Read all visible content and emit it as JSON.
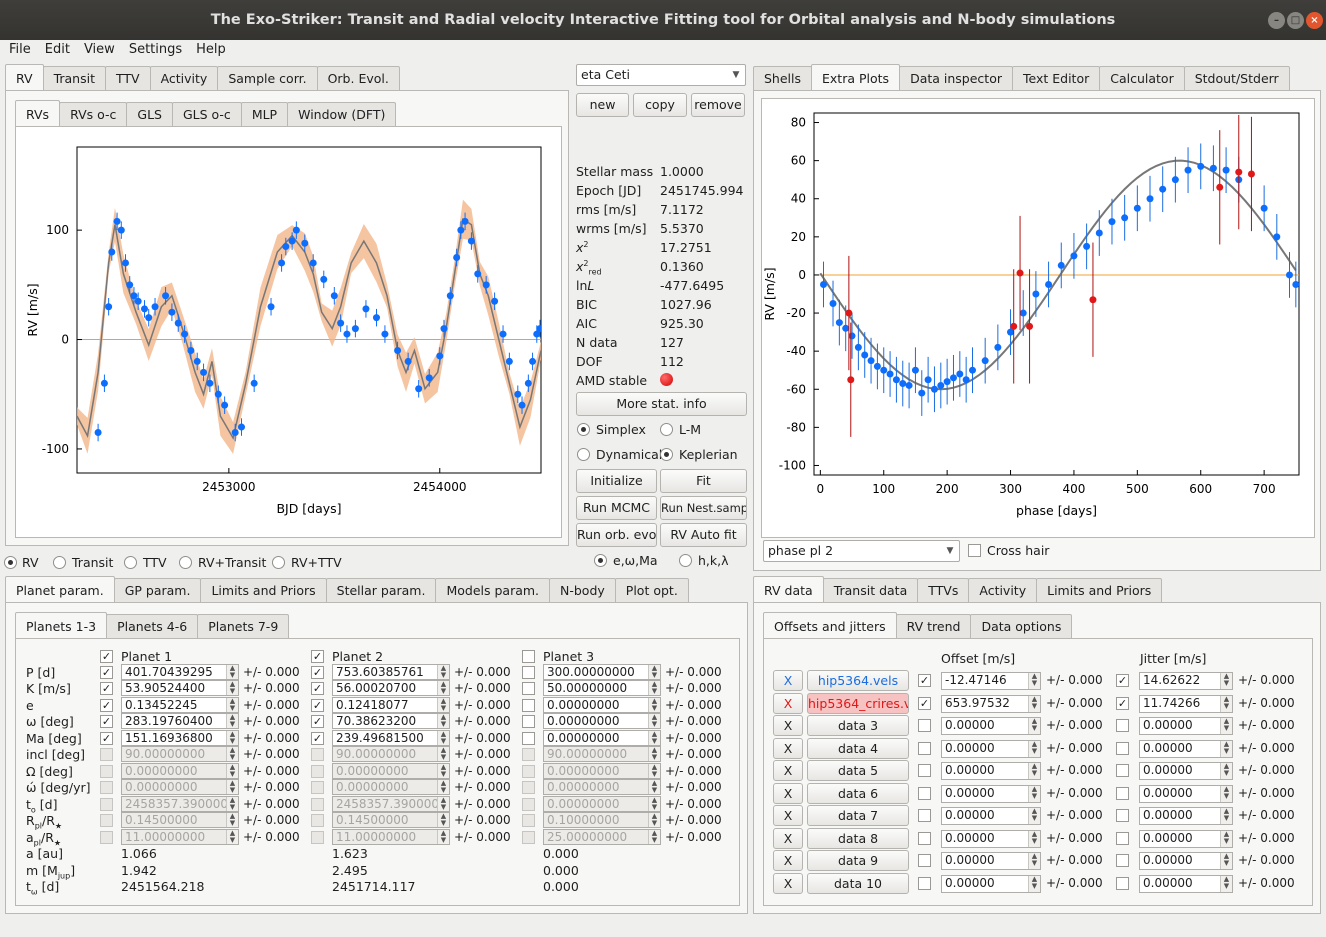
{
  "window": {
    "title": "The Exo-Striker:  Transit and Radial velocity Interactive Fitting tool for Orbital analysis and N-body simulations"
  },
  "menu": [
    "File",
    "Edit",
    "View",
    "Settings",
    "Help"
  ],
  "top_tabs": [
    "RV",
    "Transit",
    "TTV",
    "Activity",
    "Sample corr.",
    "Orb. Evol."
  ],
  "rv_subtabs": [
    "RVs",
    "RVs o-c",
    "GLS",
    "GLS o-c",
    "MLP",
    "Window (DFT)"
  ],
  "right_top_tabs": [
    "Shells",
    "Extra Plots",
    "Data inspector",
    "Text Editor",
    "Calculator",
    "Stdout/Stderr"
  ],
  "session": {
    "name": "eta Ceti",
    "new": "new",
    "copy": "copy",
    "remove": "remove"
  },
  "stats": [
    {
      "label": "Stellar mass",
      "value": "1.0000"
    },
    {
      "label": "Epoch [JD]",
      "value": "2451745.994"
    },
    {
      "label": "rms [m/s]",
      "value": "7.1172"
    },
    {
      "label": "wrms [m/s]",
      "value": "5.5370"
    },
    {
      "label": "χ²",
      "value": "17.2751"
    },
    {
      "label": "χ²red",
      "value": "0.1360"
    },
    {
      "label": "lnL",
      "value": "-477.6495"
    },
    {
      "label": "BIC",
      "value": "1027.96"
    },
    {
      "label": "AIC",
      "value": "925.30"
    },
    {
      "label": "N data",
      "value": "127"
    },
    {
      "label": "DOF",
      "value": "112"
    },
    {
      "label": "AMD stable",
      "value": ""
    }
  ],
  "controls": {
    "more_stat": "More stat. info",
    "simplex": "Simplex",
    "lm": "L-M",
    "dynamical": "Dynamical",
    "keplerian": "Keplerian",
    "initialize": "Initialize",
    "fit": "Fit",
    "run_mcmc": "Run MCMC",
    "run_nest": "Run Nest.samp.",
    "run_orb": "Run orb. evol",
    "rv_auto": "RV Auto fit",
    "ewma": "e,ω,Ma",
    "hkl": "h,k,λ"
  },
  "mode_radios": [
    "RV",
    "Transit",
    "TTV",
    "RV+Transit",
    "RV+TTV"
  ],
  "param_tabs": [
    "Planet param.",
    "GP param.",
    "Limits and Priors",
    "Stellar param.",
    "Models param.",
    "N-body",
    "Plot opt."
  ],
  "planet_subtabs": [
    "Planets 1-3",
    "Planets 4-6",
    "Planets 7-9"
  ],
  "planets": [
    {
      "name": "Planet 1",
      "on": true,
      "vals": [
        "401.70439295",
        "53.90524400",
        "0.13452245",
        "283.19760400",
        "151.16936800",
        "90.00000000",
        "0.00000000",
        "0.00000000",
        "2458357.3900000",
        "0.14500000",
        "11.00000000"
      ],
      "chk": [
        true,
        true,
        true,
        true,
        true,
        false,
        false,
        false,
        false,
        false,
        false
      ],
      "derived": [
        "1.066",
        "1.942",
        "2451564.218"
      ]
    },
    {
      "name": "Planet 2",
      "on": true,
      "vals": [
        "753.60385761",
        "56.00020700",
        "0.12418077",
        "70.38623200",
        "239.49681500",
        "90.00000000",
        "0.00000000",
        "0.00000000",
        "2458357.3900000",
        "0.14500000",
        "11.00000000"
      ],
      "chk": [
        true,
        true,
        true,
        true,
        true,
        false,
        false,
        false,
        false,
        false,
        false
      ],
      "derived": [
        "1.623",
        "2.495",
        "2451714.117"
      ]
    },
    {
      "name": "Planet 3",
      "on": false,
      "vals": [
        "300.00000000",
        "50.00000000",
        "0.00000000",
        "0.00000000",
        "0.00000000",
        "90.00000000",
        "0.00000000",
        "0.00000000",
        "0.00000000",
        "0.10000000",
        "25.00000000"
      ],
      "chk": [
        false,
        false,
        false,
        false,
        false,
        false,
        false,
        false,
        false,
        false,
        false
      ],
      "derived": [
        "0.000",
        "0.000",
        "0.000"
      ]
    }
  ],
  "param_labels": [
    "P [d]",
    "K [m/s]",
    "e",
    "ω [deg]",
    "Ma [deg]",
    "incl [deg]",
    "Ω [deg]",
    "ώ [deg/yr]",
    "t₀ [d]",
    "Rpl/R★",
    "apl/R★"
  ],
  "derived_labels": [
    "a [au]",
    "m [Mjup]",
    "tω [d]"
  ],
  "pm_text": "+/- 0.000",
  "data_tabs": [
    "RV data",
    "Transit data",
    "TTVs",
    "Activity",
    "Limits and Priors"
  ],
  "data_subtabs": [
    "Offsets and jitters",
    "RV trend",
    "Data options"
  ],
  "offset_header": "Offset [m/s]",
  "jitter_header": "Jitter [m/s]",
  "datasets": [
    {
      "x": "X",
      "name": "hip5364.vels",
      "offset": "-12.47146",
      "jitter": "14.62622",
      "on": true,
      "color": "#1a6de0"
    },
    {
      "x": "X",
      "name": "hip5364_crires.vels",
      "offset": "653.97532",
      "jitter": "11.74266",
      "on": true,
      "color": "#e01818"
    },
    {
      "x": "X",
      "name": "data 3",
      "offset": "0.00000",
      "jitter": "0.00000",
      "on": false
    },
    {
      "x": "X",
      "name": "data 4",
      "offset": "0.00000",
      "jitter": "0.00000",
      "on": false
    },
    {
      "x": "X",
      "name": "data 5",
      "offset": "0.00000",
      "jitter": "0.00000",
      "on": false
    },
    {
      "x": "X",
      "name": "data 6",
      "offset": "0.00000",
      "jitter": "0.00000",
      "on": false
    },
    {
      "x": "X",
      "name": "data 7",
      "offset": "0.00000",
      "jitter": "0.00000",
      "on": false
    },
    {
      "x": "X",
      "name": "data 8",
      "offset": "0.00000",
      "jitter": "0.00000",
      "on": false
    },
    {
      "x": "X",
      "name": "data 9",
      "offset": "0.00000",
      "jitter": "0.00000",
      "on": false
    },
    {
      "x": "X",
      "name": "data 10",
      "offset": "0.00000",
      "jitter": "0.00000",
      "on": false
    }
  ],
  "extra": {
    "select": "phase pl 2",
    "crosshair": "Cross hair"
  },
  "chart_data": [
    {
      "type": "line",
      "title": "",
      "xlabel": "BJD [days]",
      "ylabel": "RV [m/s]",
      "xlim": [
        2452280,
        2454480
      ],
      "ylim": [
        -122,
        176
      ],
      "xticks": [
        2453000,
        2454000
      ],
      "yticks": [
        -100,
        0,
        100
      ],
      "model_x": [
        2452280,
        2452330,
        2452380,
        2452430,
        2452460,
        2452500,
        2452560,
        2452620,
        2452680,
        2452730,
        2452780,
        2452840,
        2452880,
        2452920,
        2452960,
        2453020,
        2453080,
        2453150,
        2453230,
        2453300,
        2453360,
        2453400,
        2453440,
        2453490,
        2453530,
        2453580,
        2453640,
        2453700,
        2453750,
        2453800,
        2453840,
        2453880,
        2453930,
        2453990,
        2454030,
        2454070,
        2454110,
        2454150,
        2454190,
        2454230,
        2454280,
        2454330,
        2454380,
        2454430,
        2454480
      ],
      "model_y": [
        -70,
        -88,
        -30,
        70,
        105,
        60,
        25,
        -5,
        30,
        40,
        10,
        -30,
        -50,
        -20,
        -70,
        -90,
        -40,
        30,
        80,
        95,
        80,
        60,
        25,
        10,
        30,
        70,
        90,
        70,
        40,
        -10,
        -30,
        -10,
        -45,
        -30,
        10,
        60,
        110,
        105,
        60,
        40,
        0,
        -40,
        -80,
        -55,
        -10
      ],
      "series": [
        {
          "name": "",
          "color": "#0d6efd",
          "x": [
            2452380,
            2452410,
            2452430,
            2452445,
            2452470,
            2452490,
            2452510,
            2452530,
            2452550,
            2452570,
            2452600,
            2452620,
            2452650,
            2452700,
            2452730,
            2452760,
            2452790,
            2452820,
            2452850,
            2452880,
            2452910,
            2452950,
            2452980,
            2453030,
            2453060,
            2453120,
            2453200,
            2453250,
            2453270,
            2453300,
            2453320,
            2453360,
            2453400,
            2453450,
            2453500,
            2453530,
            2453560,
            2453600,
            2453650,
            2453700,
            2453740,
            2453800,
            2453850,
            2453900,
            2453950,
            2454000,
            2454020,
            2454050,
            2454080,
            2454100,
            2454120,
            2454150,
            2454180,
            2454220,
            2454260,
            2454300,
            2454330,
            2454370,
            2454390,
            2454420,
            2454440,
            2454460,
            2454475
          ],
          "y": [
            -85,
            -40,
            30,
            80,
            108,
            100,
            70,
            50,
            40,
            35,
            28,
            20,
            30,
            40,
            25,
            15,
            5,
            -10,
            -20,
            -30,
            -40,
            -50,
            -60,
            -85,
            -80,
            -40,
            30,
            70,
            85,
            90,
            100,
            88,
            70,
            55,
            40,
            15,
            5,
            10,
            28,
            20,
            5,
            -10,
            -20,
            -45,
            -35,
            -15,
            10,
            40,
            75,
            100,
            108,
            90,
            60,
            50,
            35,
            5,
            -20,
            -50,
            -60,
            -40,
            -20,
            5,
            10
          ]
        }
      ]
    },
    {
      "type": "scatter",
      "title": "",
      "xlabel": "phase [days]",
      "ylabel": "RV [m/s]",
      "xlim": [
        -10,
        755
      ],
      "ylim": [
        -105,
        85
      ],
      "xticks": [
        0,
        100,
        200,
        300,
        400,
        500,
        600,
        700
      ],
      "yticks": [
        -100,
        -80,
        -60,
        -40,
        -20,
        0,
        20,
        40,
        60,
        80
      ],
      "series": [
        {
          "name": "hip5364.vels",
          "color": "#0d6efd",
          "x": [
            5,
            20,
            30,
            40,
            50,
            60,
            70,
            80,
            90,
            100,
            110,
            120,
            130,
            140,
            150,
            160,
            170,
            180,
            190,
            200,
            210,
            220,
            230,
            240,
            260,
            280,
            300,
            320,
            340,
            360,
            380,
            400,
            420,
            440,
            460,
            480,
            500,
            520,
            540,
            560,
            580,
            600,
            620,
            640,
            660,
            700,
            720,
            740,
            750
          ],
          "y": [
            -5,
            -15,
            -25,
            -28,
            -32,
            -38,
            -42,
            -45,
            -48,
            -50,
            -52,
            -55,
            -57,
            -58,
            -50,
            -62,
            -55,
            -60,
            -58,
            -56,
            -54,
            -52,
            -55,
            -50,
            -45,
            -38,
            -30,
            -20,
            -10,
            -5,
            5,
            10,
            15,
            22,
            28,
            30,
            35,
            40,
            45,
            50,
            55,
            57,
            56,
            55,
            50,
            35,
            20,
            0,
            -5
          ]
        },
        {
          "name": "hip5364_crires.vels",
          "color": "#e01818",
          "x": [
            45,
            48,
            305,
            315,
            330,
            430,
            630,
            660,
            680
          ],
          "y": [
            -20,
            -55,
            -27,
            1,
            -27,
            -13,
            46,
            54,
            53
          ]
        }
      ]
    }
  ]
}
